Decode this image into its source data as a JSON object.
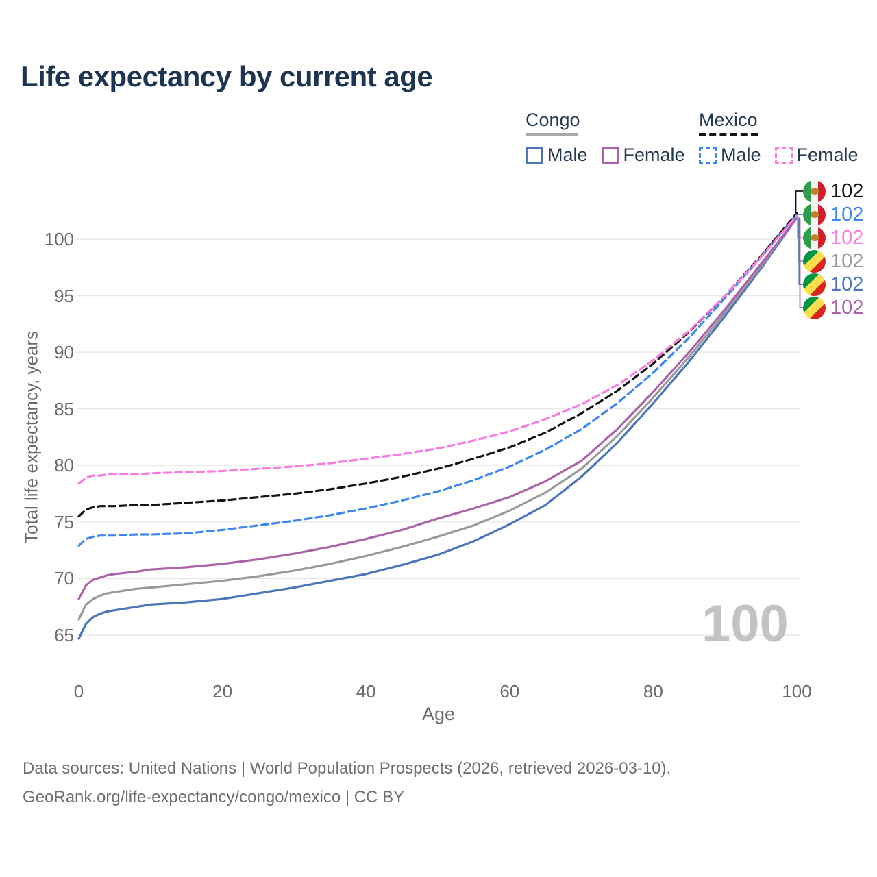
{
  "title": "Life expectancy by current age",
  "legend": {
    "groups": [
      {
        "name": "Congo",
        "style": "solid",
        "underline_color": "#a8a8a8",
        "items": [
          {
            "label": "Male",
            "color": "#4b76ba"
          },
          {
            "label": "Female",
            "color": "#ad63a9"
          }
        ]
      },
      {
        "name": "Mexico",
        "style": "dashed",
        "underline_color": "#141414",
        "items": [
          {
            "label": "Male",
            "color": "#3d87f0"
          },
          {
            "label": "Female",
            "color": "#fb7ce1"
          }
        ]
      }
    ]
  },
  "watermark": "100",
  "footer": {
    "line1": "Data sources: United Nations | World Population Prospects (2026, retrieved 2026-03-10).",
    "line2": "GeoRank.org/life-expectancy/congo/mexico | CC BY"
  },
  "chart_data": {
    "type": "line",
    "title": "Life expectancy by current age",
    "xlabel": "Age",
    "ylabel": "Total life expectancy, years",
    "xlim": [
      0,
      100
    ],
    "ylim": [
      65,
      100
    ],
    "xticks": [
      0,
      20,
      40,
      60,
      80,
      100
    ],
    "yticks": [
      65,
      70,
      75,
      80,
      85,
      90,
      95,
      100
    ],
    "grid": "horizontal",
    "legend_position": "top-right",
    "x": [
      0,
      1,
      2,
      3,
      4,
      5,
      8,
      10,
      15,
      20,
      25,
      30,
      35,
      40,
      45,
      50,
      55,
      60,
      65,
      70,
      75,
      80,
      85,
      90,
      95,
      100
    ],
    "series": [
      {
        "name": "Congo male",
        "country": "Congo",
        "sex": "male",
        "flag": "congo",
        "color": "#4b76ba",
        "dashed": false,
        "end_label": "102",
        "label_row": 4,
        "values": [
          64.7,
          66.0,
          66.6,
          66.9,
          67.1,
          67.2,
          67.5,
          67.7,
          67.9,
          68.2,
          68.7,
          69.2,
          69.8,
          70.4,
          71.2,
          72.1,
          73.3,
          74.8,
          76.5,
          79.0,
          82.0,
          85.5,
          89.2,
          93.2,
          97.4,
          101.9
        ]
      },
      {
        "name": "Congo total",
        "country": "Congo",
        "sex": "both",
        "flag": "congo",
        "color": "#9a9a9a",
        "dashed": false,
        "end_label": "102",
        "label_row": 3,
        "values": [
          66.4,
          67.7,
          68.2,
          68.5,
          68.7,
          68.8,
          69.1,
          69.2,
          69.5,
          69.8,
          70.2,
          70.7,
          71.3,
          72.0,
          72.8,
          73.7,
          74.7,
          76.0,
          77.6,
          79.7,
          82.6,
          86.0,
          89.6,
          93.5,
          97.6,
          101.95
        ]
      },
      {
        "name": "Congo female",
        "country": "Congo",
        "sex": "female",
        "flag": "congo",
        "color": "#ad63a9",
        "dashed": false,
        "end_label": "102",
        "label_row": 5,
        "values": [
          68.2,
          69.4,
          69.9,
          70.1,
          70.3,
          70.4,
          70.6,
          70.8,
          71.0,
          71.3,
          71.7,
          72.2,
          72.8,
          73.5,
          74.3,
          75.3,
          76.2,
          77.2,
          78.6,
          80.4,
          83.2,
          86.5,
          90.0,
          93.8,
          97.8,
          101.85
        ]
      },
      {
        "name": "Mexico male",
        "country": "Mexico",
        "sex": "male",
        "flag": "mexico",
        "color": "#3d87f0",
        "dashed": true,
        "end_label": "102",
        "label_row": 1,
        "values": [
          72.9,
          73.5,
          73.7,
          73.8,
          73.8,
          73.8,
          73.9,
          73.9,
          74.0,
          74.3,
          74.7,
          75.1,
          75.6,
          76.2,
          76.9,
          77.7,
          78.7,
          79.9,
          81.4,
          83.2,
          85.5,
          88.2,
          91.3,
          94.8,
          98.4,
          102.2
        ]
      },
      {
        "name": "Mexico total",
        "country": "Mexico",
        "sex": "both",
        "flag": "mexico",
        "color": "#141414",
        "dashed": true,
        "end_label": "102",
        "label_row": 0,
        "values": [
          75.5,
          76.1,
          76.3,
          76.4,
          76.4,
          76.4,
          76.5,
          76.5,
          76.7,
          76.9,
          77.2,
          77.5,
          77.9,
          78.4,
          79.0,
          79.7,
          80.6,
          81.6,
          82.9,
          84.6,
          86.6,
          89.0,
          91.8,
          95.0,
          98.5,
          102.3
        ]
      },
      {
        "name": "Mexico female",
        "country": "Mexico",
        "sex": "female",
        "flag": "mexico",
        "color": "#fb7ce1",
        "dashed": true,
        "end_label": "102",
        "label_row": 2,
        "values": [
          78.4,
          78.9,
          79.1,
          79.1,
          79.2,
          79.2,
          79.2,
          79.3,
          79.4,
          79.5,
          79.7,
          79.9,
          80.2,
          80.6,
          81.0,
          81.5,
          82.2,
          83.0,
          84.1,
          85.4,
          87.1,
          89.3,
          91.9,
          95.0,
          98.4,
          102.1
        ]
      }
    ]
  }
}
